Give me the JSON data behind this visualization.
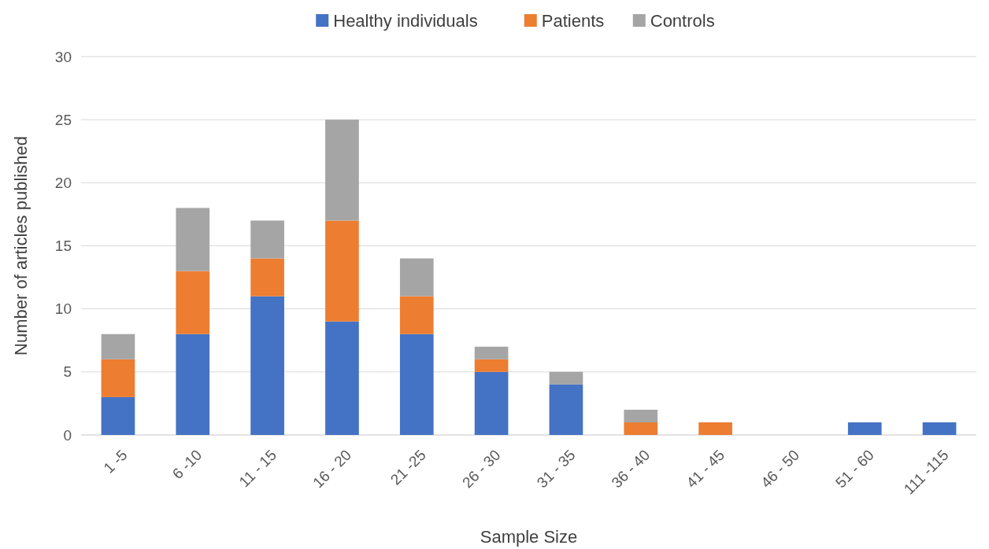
{
  "chart_data": {
    "type": "bar",
    "stacked": true,
    "xlabel": "Sample Size",
    "ylabel": "Number of articles published",
    "categories": [
      "1 -5",
      "6 -10",
      "11 - 15",
      "16 - 20",
      "21 -25",
      "26 - 30",
      "31 - 35",
      "36 - 40",
      "41 - 45",
      "46 - 50",
      "51 - 60",
      "111 -115"
    ],
    "series": [
      {
        "name": "Healthy individuals",
        "color": "#4472c4",
        "values": [
          3,
          8,
          11,
          9,
          8,
          5,
          4,
          0,
          0,
          0,
          1,
          1
        ]
      },
      {
        "name": "Patients",
        "color": "#ed7d31",
        "values": [
          3,
          5,
          3,
          8,
          3,
          1,
          0,
          1,
          1,
          0,
          0,
          0
        ]
      },
      {
        "name": "Controls",
        "color": "#a5a5a5",
        "values": [
          2,
          5,
          3,
          8,
          3,
          1,
          1,
          1,
          0,
          0,
          0,
          0
        ]
      }
    ],
    "ylim": [
      0,
      30
    ],
    "yticks": [
      0,
      5,
      10,
      15,
      20,
      25,
      30
    ],
    "grid": "y",
    "legend": "top"
  }
}
